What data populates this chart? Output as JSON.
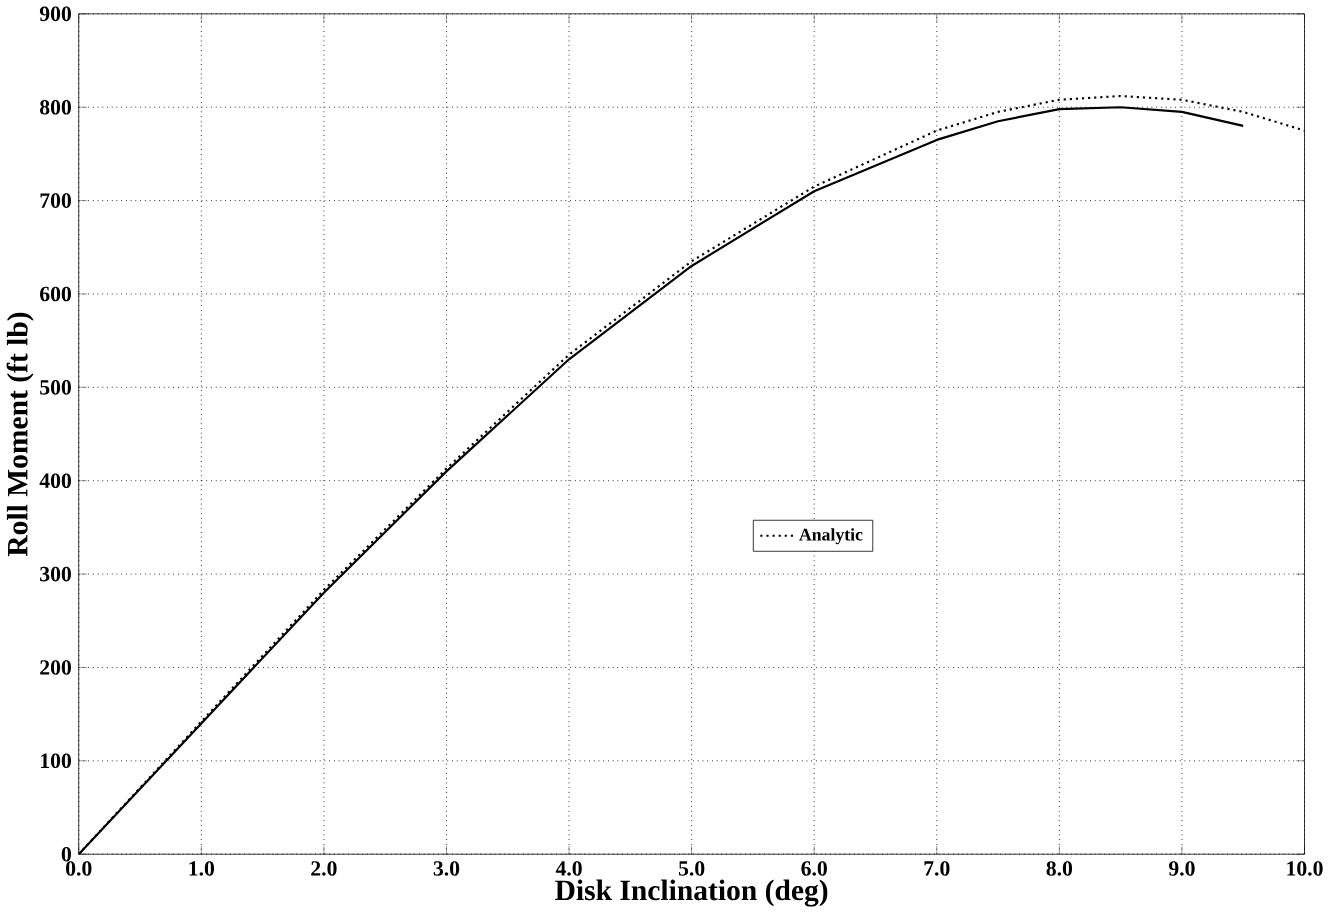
{
  "chart_data": {
    "type": "line",
    "xlabel": "Disk Inclination (deg)",
    "ylabel": "Roll Moment (ft lb)",
    "xlim": [
      0,
      10
    ],
    "ylim": [
      0,
      900
    ],
    "xticks": [
      {
        "value": 0,
        "label": "0.0"
      },
      {
        "value": 1,
        "label": "1.0"
      },
      {
        "value": 2,
        "label": "2.0"
      },
      {
        "value": 3,
        "label": "3.0"
      },
      {
        "value": 4,
        "label": "4.0"
      },
      {
        "value": 5,
        "label": "5.0"
      },
      {
        "value": 6,
        "label": "6.0"
      },
      {
        "value": 7,
        "label": "7.0"
      },
      {
        "value": 8,
        "label": "8.0"
      },
      {
        "value": 9,
        "label": "9.0"
      },
      {
        "value": 10,
        "label": "10.0"
      }
    ],
    "yticks": [
      0,
      100,
      200,
      300,
      400,
      500,
      600,
      700,
      800,
      900
    ],
    "grid": true,
    "legend": "center",
    "series": [
      {
        "color": "#000000",
        "line_style": "solid",
        "x": [
          0,
          1,
          2,
          3,
          4,
          5,
          6,
          7,
          7.5,
          8,
          8.5,
          9,
          9.5
        ],
        "values": [
          0,
          140,
          280,
          410,
          530,
          630,
          710,
          765,
          785,
          798,
          800,
          795,
          780
        ]
      },
      {
        "name": "Analytic",
        "color": "#000000",
        "line_style": "dotted",
        "x": [
          0,
          1,
          2,
          3,
          4,
          5,
          6,
          7,
          7.5,
          8,
          8.5,
          9,
          9.5,
          10
        ],
        "values": [
          0,
          142,
          283,
          413,
          535,
          635,
          715,
          775,
          795,
          808,
          812,
          808,
          795,
          775
        ]
      }
    ]
  }
}
